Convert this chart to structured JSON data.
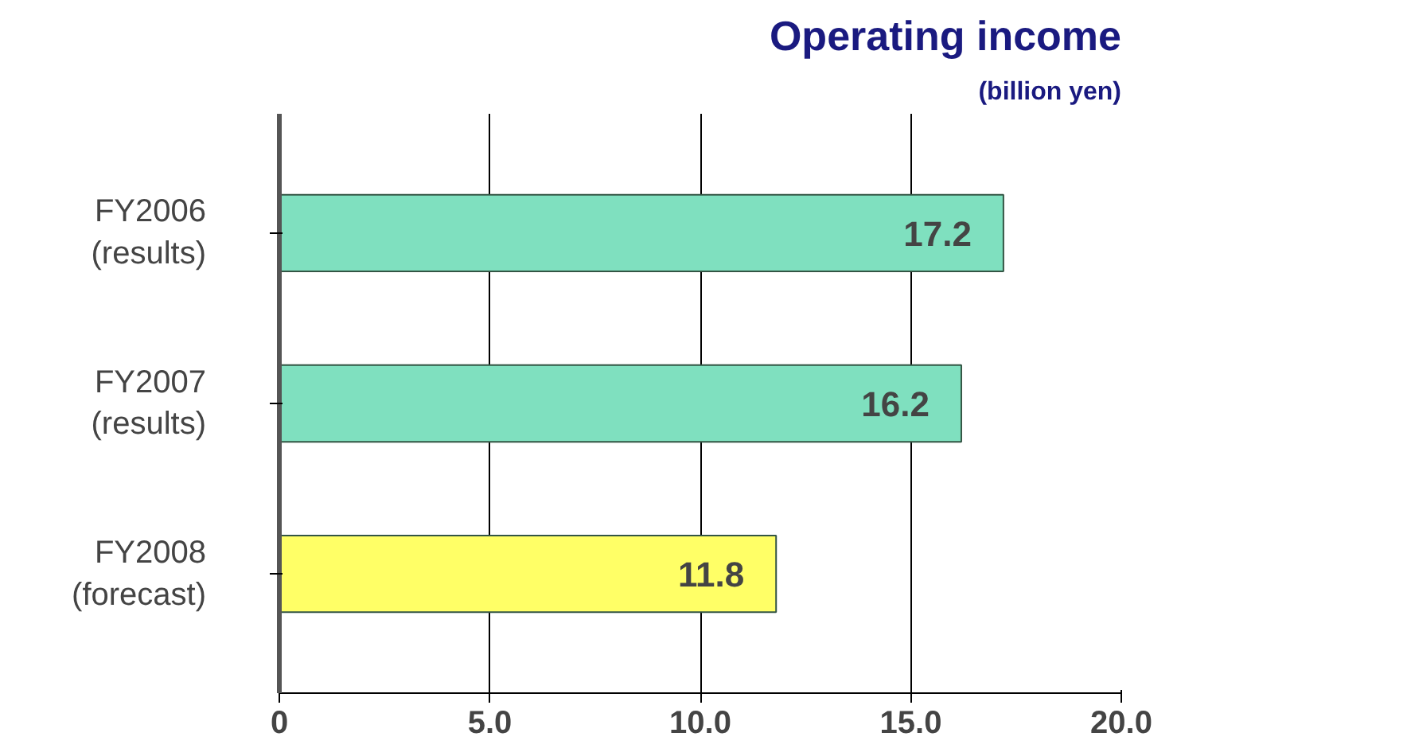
{
  "chart_data": {
    "type": "bar",
    "orientation": "horizontal",
    "title": "Operating income",
    "subtitle": "(billion yen)",
    "categories": [
      "FY2006\n(results)",
      "FY2007\n(results)",
      "FY2008\n(forecast)"
    ],
    "values": [
      17.2,
      16.2,
      11.8
    ],
    "colors": [
      "#7fe0bf",
      "#7fe0bf",
      "#ffff66"
    ],
    "xlim": [
      0,
      20
    ],
    "xticks": [
      0,
      {
        "value": 5,
        "label": "5.0"
      },
      {
        "value": 10,
        "label": "10.0"
      },
      {
        "value": 15,
        "label": "15.0"
      },
      {
        "value": 20,
        "label": "20.0"
      }
    ],
    "grid": "x",
    "data_labels": true
  }
}
